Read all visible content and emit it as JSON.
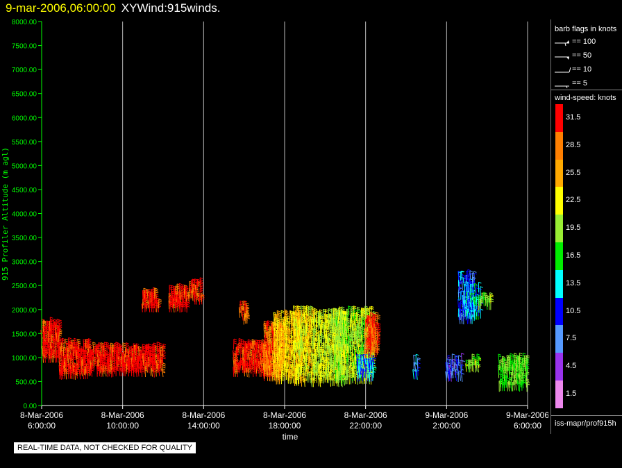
{
  "header": {
    "date": "9-mar-2006,06:00:00",
    "product": "XYWind:915winds."
  },
  "quality_note": "REAL-TIME DATA, NOT CHECKED FOR QUALITY",
  "source_label": "iss-mapr/prof915h",
  "barb_legend": {
    "title": "barb flags in knots",
    "items": [
      {
        "label": "== 100",
        "kind": "flag"
      },
      {
        "label": "== 50",
        "kind": "flag"
      },
      {
        "label": "== 10",
        "kind": "full"
      },
      {
        "label": "== 5",
        "kind": "half"
      }
    ]
  },
  "colorbar": {
    "title": "wind-speed: knots",
    "labels": [
      "31.5",
      "28.5",
      "25.5",
      "22.5",
      "19.5",
      "16.5",
      "13.5",
      "10.5",
      "7.5",
      "4.5",
      "1.5"
    ],
    "colors": [
      "#ff0000",
      "#ff7f00",
      "#ffaa00",
      "#ffff00",
      "#99ee33",
      "#00ee00",
      "#00ffff",
      "#0000ff",
      "#5599ff",
      "#9933ee",
      "#ee88ee"
    ]
  },
  "chart_data": {
    "type": "scatter",
    "subtype": "wind-barb time-height",
    "xlabel": "time",
    "ylabel": "915 Profiler Altitude (m agl)",
    "ylim": [
      0,
      8000
    ],
    "y_ticks": [
      "0.00",
      "500.00",
      "1000.00",
      "1500.00",
      "2000.00",
      "2500.00",
      "3000.00",
      "3500.00",
      "4000.00",
      "4500.00",
      "5000.00",
      "5500.00",
      "6000.00",
      "6500.00",
      "7000.00",
      "7500.00",
      "8000.00"
    ],
    "x_ticks": [
      {
        "date": "8-Mar-2006",
        "time": "6:00:00",
        "hour": 0
      },
      {
        "date": "8-Mar-2006",
        "time": "10:00:00",
        "hour": 4
      },
      {
        "date": "8-Mar-2006",
        "time": "14:00:00",
        "hour": 8
      },
      {
        "date": "8-Mar-2006",
        "time": "18:00:00",
        "hour": 12
      },
      {
        "date": "8-Mar-2006",
        "time": "22:00:00",
        "hour": 16
      },
      {
        "date": "9-Mar-2006",
        "time": "2:00:00",
        "hour": 20
      },
      {
        "date": "9-Mar-2006",
        "time": "6:00:00",
        "hour": 24
      }
    ],
    "grid": "vertical",
    "clusters": [
      {
        "t0": 0.0,
        "t1": 0.9,
        "z0": 900,
        "z1": 1650,
        "speed": 31.5
      },
      {
        "t0": 0.9,
        "t1": 2.5,
        "z0": 550,
        "z1": 1200,
        "speed": 31.5
      },
      {
        "t0": 2.5,
        "t1": 6.0,
        "z0": 600,
        "z1": 1150,
        "speed": 31.5
      },
      {
        "t0": 5.0,
        "t1": 5.8,
        "z0": 1950,
        "z1": 2250,
        "speed": 31.5
      },
      {
        "t0": 6.3,
        "t1": 7.2,
        "z0": 1950,
        "z1": 2350,
        "speed": 31.5
      },
      {
        "t0": 7.3,
        "t1": 7.9,
        "z0": 2100,
        "z1": 2450,
        "speed": 31.5
      },
      {
        "t0": 9.8,
        "t1": 10.2,
        "z0": 1700,
        "z1": 2000,
        "speed": 28.5
      },
      {
        "t0": 9.5,
        "t1": 11.3,
        "z0": 600,
        "z1": 1200,
        "speed": 31.5
      },
      {
        "t0": 11.0,
        "t1": 12.0,
        "z0": 500,
        "z1": 1600,
        "speed": 28.5
      },
      {
        "t0": 11.5,
        "t1": 12.8,
        "z0": 450,
        "z1": 1800,
        "speed": 24.0
      },
      {
        "t0": 12.5,
        "t1": 13.5,
        "z0": 400,
        "z1": 1900,
        "speed": 22.5
      },
      {
        "t0": 13.5,
        "t1": 15.0,
        "z0": 400,
        "z1": 1800,
        "speed": 21.0
      },
      {
        "t0": 14.5,
        "t1": 16.4,
        "z0": 450,
        "z1": 1850,
        "speed": 20.0
      },
      {
        "t0": 15.6,
        "t1": 16.4,
        "z0": 500,
        "z1": 900,
        "speed": 12.0
      },
      {
        "t0": 16.0,
        "t1": 16.6,
        "z0": 1000,
        "z1": 1700,
        "speed": 30.0
      },
      {
        "t0": 18.4,
        "t1": 18.6,
        "z0": 550,
        "z1": 850,
        "speed": 10.0
      },
      {
        "t0": 20.0,
        "t1": 20.8,
        "z0": 500,
        "z1": 850,
        "speed": 7.5
      },
      {
        "t0": 21.0,
        "t1": 21.6,
        "z0": 700,
        "z1": 900,
        "speed": 19.0
      },
      {
        "t0": 20.6,
        "t1": 21.4,
        "z0": 1700,
        "z1": 2650,
        "speed": 10.0
      },
      {
        "t0": 20.9,
        "t1": 21.7,
        "z0": 1800,
        "z1": 2400,
        "speed": 13.0
      },
      {
        "t0": 21.6,
        "t1": 22.2,
        "z0": 2000,
        "z1": 2200,
        "speed": 19.0
      },
      {
        "t0": 22.6,
        "t1": 24.0,
        "z0": 300,
        "z1": 900,
        "speed": 18.0
      }
    ]
  }
}
